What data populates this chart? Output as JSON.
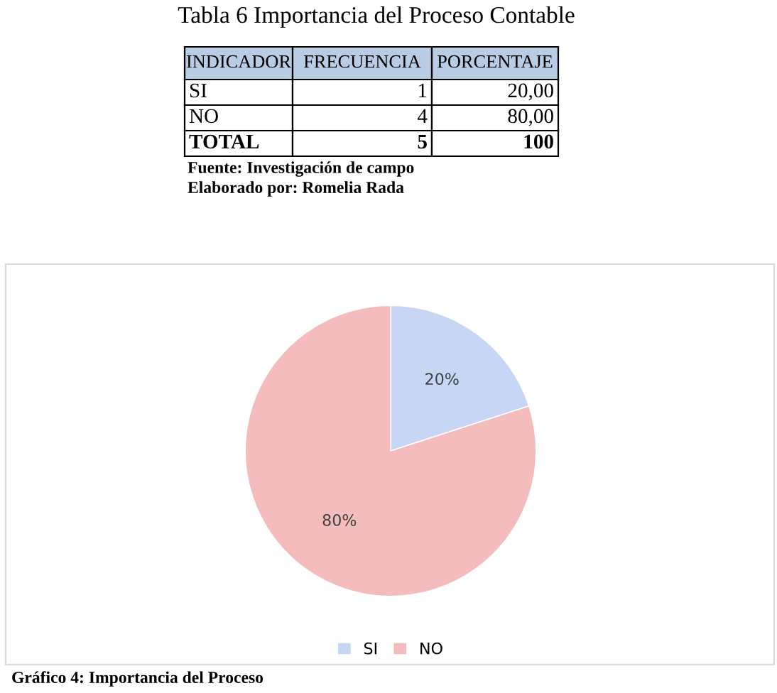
{
  "chart_data": {
    "type": "pie",
    "title": "Tabla 6 Importancia del Proceso Contable",
    "categories": [
      "SI",
      "NO"
    ],
    "values": [
      20,
      80
    ],
    "colors": [
      "#c6d6f4",
      "#f4bcbc"
    ],
    "value_labels": [
      "20%",
      "80%"
    ],
    "legend": "bottom",
    "annotations": [
      "INDICADOR",
      "FRECUENCIA",
      "PORCENTAJE",
      "SI",
      "1",
      "20,00",
      "NO",
      "4",
      "80,00",
      "TOTAL",
      "5",
      "100",
      "Fuente: Investigación de campo",
      "Elaborado por: Romelia Rada",
      "Gráfico 4: Importancia del Proceso"
    ]
  }
}
